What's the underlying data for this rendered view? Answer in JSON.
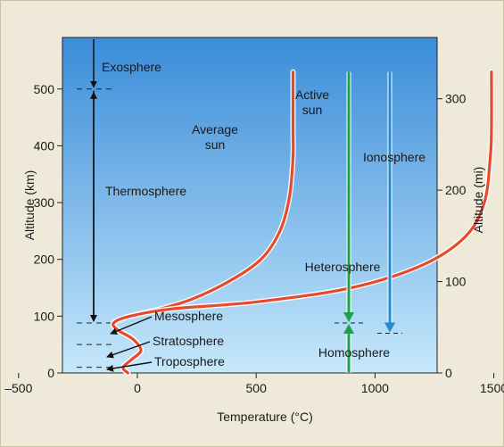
{
  "chart_data": {
    "type": "line",
    "title": "",
    "xlabel": "Temperature (°C)",
    "ylabel_left": "Altitude (km)",
    "ylabel_right": "Altitude (mi)",
    "xlim": [
      -500,
      2500
    ],
    "ylim": [
      0,
      580
    ],
    "x_ticks": [
      {
        "value": -500,
        "label": "–500"
      },
      {
        "value": 0,
        "label": "0"
      },
      {
        "value": 500,
        "label": "500"
      },
      {
        "value": 1000,
        "label": "1000"
      },
      {
        "value": 1500,
        "label": "1500"
      }
    ],
    "y_ticks_left": [
      {
        "value": 0,
        "label": "0"
      },
      {
        "value": 100,
        "label": "100"
      },
      {
        "value": 200,
        "label": "200"
      },
      {
        "value": 300,
        "label": "300"
      },
      {
        "value": 400,
        "label": "400"
      },
      {
        "value": 500,
        "label": "500"
      }
    ],
    "y_ticks_right": [
      {
        "value": 0,
        "label": "0"
      },
      {
        "value": 100,
        "label": "100"
      },
      {
        "value": 200,
        "label": "200"
      },
      {
        "value": 300,
        "label": "300"
      }
    ],
    "series": [
      {
        "name": "Average sun",
        "color": "#e8492a",
        "points": [
          [
            -40,
            0
          ],
          [
            -60,
            10
          ],
          [
            -20,
            25
          ],
          [
            15,
            40
          ],
          [
            -20,
            60
          ],
          [
            -80,
            75
          ],
          [
            -100,
            88
          ],
          [
            -30,
            100
          ],
          [
            100,
            113
          ],
          [
            230,
            130
          ],
          [
            380,
            160
          ],
          [
            520,
            200
          ],
          [
            600,
            250
          ],
          [
            640,
            310
          ],
          [
            655,
            380
          ],
          [
            655,
            430
          ],
          [
            655,
            530
          ]
        ]
      },
      {
        "name": "Active sun",
        "color": "#e8492a",
        "points": [
          [
            -40,
            0
          ],
          [
            -60,
            10
          ],
          [
            -20,
            25
          ],
          [
            15,
            40
          ],
          [
            -20,
            60
          ],
          [
            -80,
            75
          ],
          [
            -100,
            88
          ],
          [
            -30,
            100
          ],
          [
            150,
            113
          ],
          [
            500,
            125
          ],
          [
            900,
            150
          ],
          [
            1200,
            190
          ],
          [
            1380,
            240
          ],
          [
            1460,
            300
          ],
          [
            1485,
            380
          ],
          [
            1490,
            430
          ],
          [
            1490,
            530
          ]
        ]
      }
    ],
    "layers": [
      {
        "name": "Exosphere",
        "bottom_km": 500
      },
      {
        "name": "Thermosphere",
        "bottom_km": 88
      },
      {
        "name": "Mesosphere",
        "bottom_km": 50
      },
      {
        "name": "Stratosphere",
        "bottom_km": 10
      },
      {
        "name": "Troposphere",
        "bottom_km": 0
      }
    ],
    "regions": [
      {
        "name": "Heterosphere",
        "color": "#1aa34a"
      },
      {
        "name": "Homosphere",
        "color": "#1aa34a"
      },
      {
        "name": "Ionosphere",
        "color": "#1f8ad0"
      }
    ],
    "annotations": {
      "average_sun": [
        "Average",
        "sun"
      ],
      "active_sun": [
        "Active",
        "sun"
      ],
      "exosphere": "Exosphere",
      "thermosphere": "Thermosphere",
      "mesosphere": "Mesosphere",
      "stratosphere": "Stratosphere",
      "troposphere": "Troposphere",
      "heterosphere": "Heterosphere",
      "homosphere": "Homosphere",
      "ionosphere": "Ionosphere"
    },
    "grid": false,
    "background_gradient": [
      "#3a8cd9",
      "#c6e8fb"
    ]
  }
}
